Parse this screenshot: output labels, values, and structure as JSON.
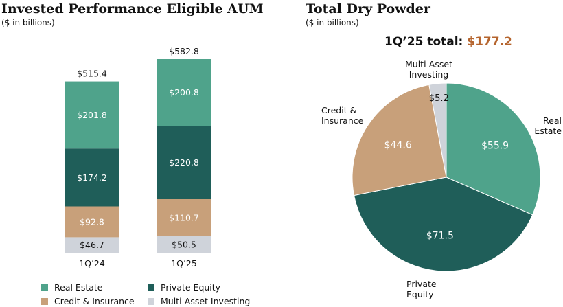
{
  "colors": {
    "real_estate": "#4fa38b",
    "private_equity": "#1f5e59",
    "credit_insurance": "#c8a07a",
    "multi_asset": "#cfd3da",
    "accent_total": "#b5642d"
  },
  "left": {
    "title": "Invested Performance Eligible AUM",
    "subtitle": "($ in billions)"
  },
  "right": {
    "title": "Total Dry Powder",
    "subtitle": "($ in billions)",
    "total_label": "1Q’25 total:",
    "total_value": "$177.2"
  },
  "legend": {
    "real_estate": "Real Estate",
    "private_equity": "Private Equity",
    "credit_insurance": "Credit & Insurance",
    "multi_asset": "Multi-Asset Investing"
  },
  "pie_labels": {
    "multi_asset": [
      "Multi-Asset",
      "Investing"
    ],
    "credit_insurance": [
      "Credit &",
      "Insurance"
    ],
    "real_estate": [
      "Real",
      "Estate"
    ],
    "private_equity": [
      "Private",
      "Equity"
    ]
  },
  "chart_data": [
    {
      "type": "bar",
      "stacked": true,
      "title": "Invested Performance Eligible AUM",
      "subtitle": "($ in billions)",
      "categories": [
        "1Q’24",
        "1Q’25"
      ],
      "totals": [
        515.4,
        582.8
      ],
      "total_labels": [
        "$515.4",
        "$582.8"
      ],
      "series": [
        {
          "name": "Multi-Asset Investing",
          "key": "multi_asset",
          "values": [
            46.7,
            50.5
          ],
          "labels": [
            "$46.7",
            "$50.5"
          ]
        },
        {
          "name": "Credit & Insurance",
          "key": "credit_insurance",
          "values": [
            92.8,
            110.7
          ],
          "labels": [
            "$92.8",
            "$110.7"
          ]
        },
        {
          "name": "Private Equity",
          "key": "private_equity",
          "values": [
            174.2,
            220.8
          ],
          "labels": [
            "$174.2",
            "$220.8"
          ]
        },
        {
          "name": "Real Estate",
          "key": "real_estate",
          "values": [
            201.8,
            200.8
          ],
          "labels": [
            "$201.8",
            "$200.8"
          ]
        }
      ],
      "legend": "bottom"
    },
    {
      "type": "pie",
      "title": "Total Dry Powder",
      "subtitle": "($ in billions)",
      "total": 177.2,
      "slices": [
        {
          "name": "Real Estate",
          "key": "real_estate",
          "value": 55.9,
          "label": "$55.9"
        },
        {
          "name": "Private Equity",
          "key": "private_equity",
          "value": 71.5,
          "label": "$71.5"
        },
        {
          "name": "Credit & Insurance",
          "key": "credit_insurance",
          "value": 44.6,
          "label": "$44.6"
        },
        {
          "name": "Multi-Asset Investing",
          "key": "multi_asset",
          "value": 5.2,
          "label": "$5.2"
        }
      ]
    }
  ]
}
